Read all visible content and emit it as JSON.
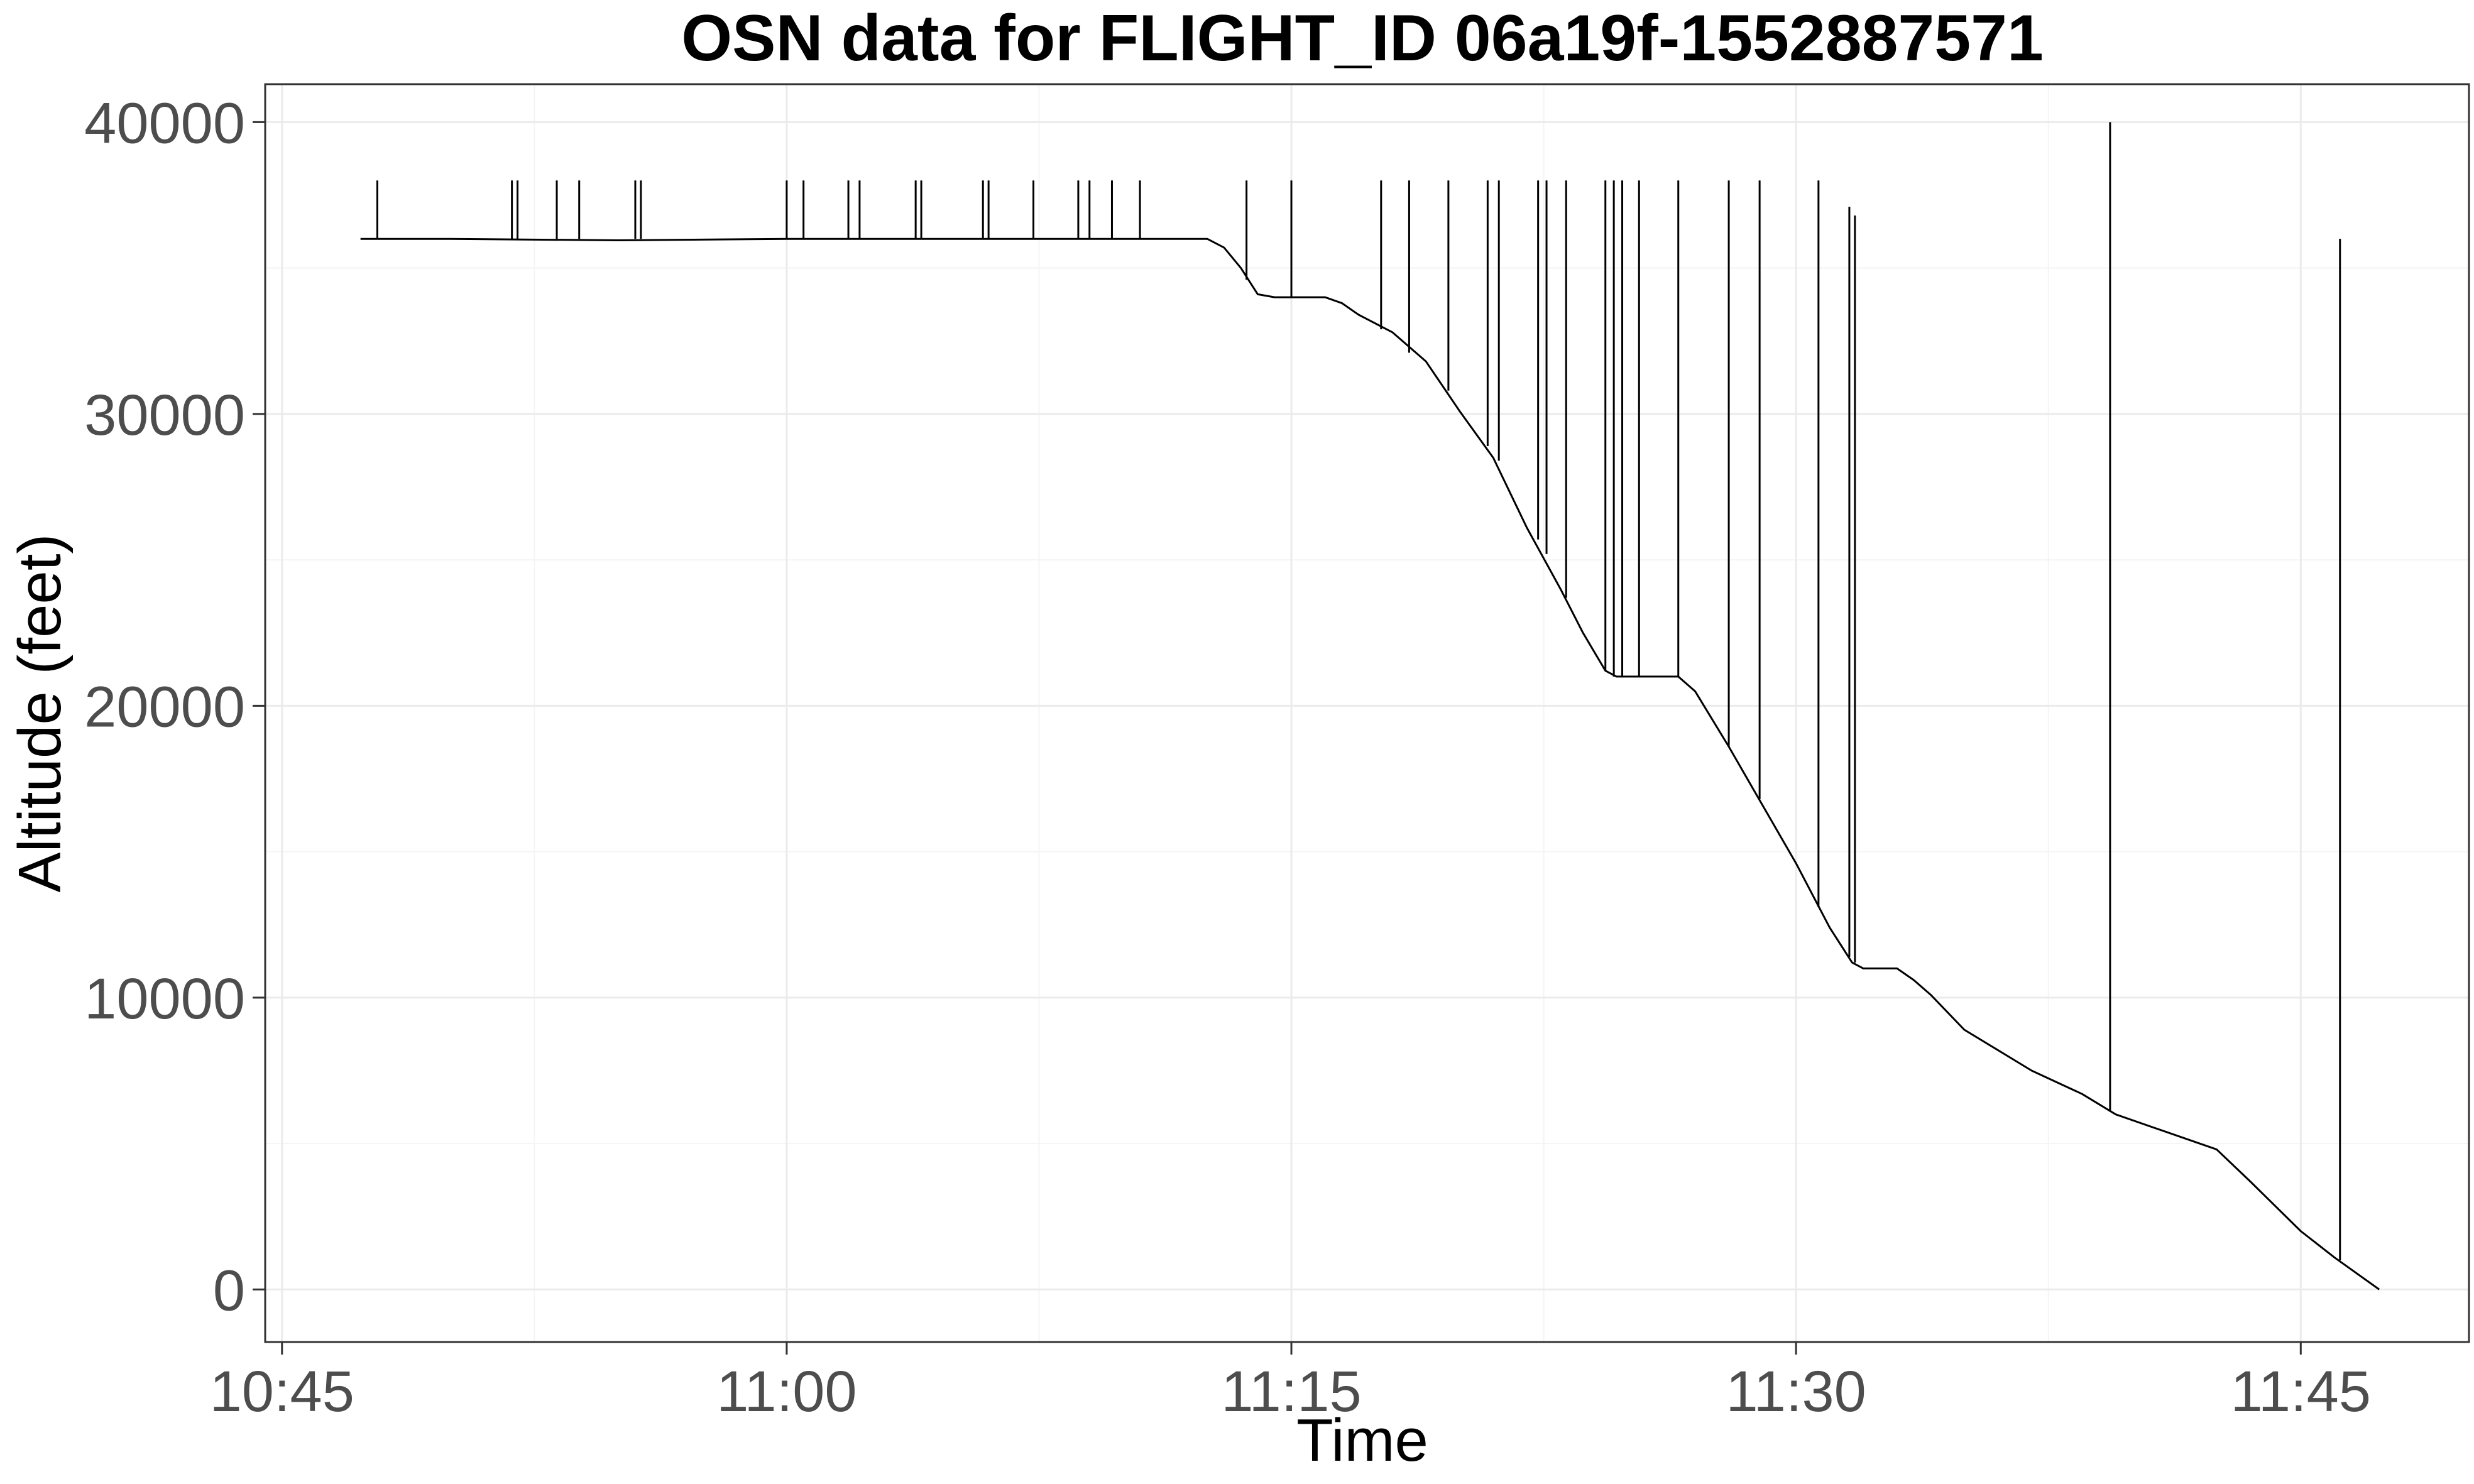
{
  "chart_data": {
    "type": "line",
    "title": "OSN data for FLIGHT_ID 06a19f-1552887571",
    "xlabel": "Time",
    "ylabel": "Altitude (feet)",
    "x_unit": "time of day (HH:MM)",
    "xlim": [
      "10:44:30",
      "11:50:00"
    ],
    "ylim": [
      -1800,
      41300
    ],
    "x_ticks": [
      "10:45",
      "11:00",
      "11:15",
      "11:30",
      "11:45"
    ],
    "y_ticks": [
      0,
      10000,
      20000,
      30000,
      40000
    ],
    "grid": true,
    "legend": "none",
    "series": [
      {
        "points": [
          [
            "10:47:20",
            36000
          ],
          [
            "10:50:00",
            36000
          ],
          [
            "10:55:00",
            35950
          ],
          [
            "11:00:00",
            36000
          ],
          [
            "11:05:00",
            36000
          ],
          [
            "11:10:00",
            36000
          ],
          [
            "11:12:30",
            36000
          ],
          [
            "11:13:00",
            35700
          ],
          [
            "11:13:30",
            35000
          ],
          [
            "11:14:00",
            34100
          ],
          [
            "11:14:30",
            34000
          ],
          [
            "11:16:00",
            34000
          ],
          [
            "11:16:30",
            33800
          ],
          [
            "11:17:00",
            33400
          ],
          [
            "11:18:00",
            32800
          ],
          [
            "11:19:00",
            31800
          ],
          [
            "11:20:00",
            30100
          ],
          [
            "11:21:00",
            28500
          ],
          [
            "11:22:00",
            26100
          ],
          [
            "11:23:00",
            24000
          ],
          [
            "11:23:40",
            22500
          ],
          [
            "11:24:20",
            21200
          ],
          [
            "11:24:40",
            21000
          ],
          [
            "11:26:30",
            21000
          ],
          [
            "11:27:00",
            20500
          ],
          [
            "11:28:00",
            18600
          ],
          [
            "11:29:00",
            16600
          ],
          [
            "11:30:00",
            14600
          ],
          [
            "11:31:00",
            12400
          ],
          [
            "11:31:40",
            11200
          ],
          [
            "11:32:00",
            11000
          ],
          [
            "11:33:00",
            11000
          ],
          [
            "11:33:30",
            10600
          ],
          [
            "11:34:00",
            10100
          ],
          [
            "11:35:00",
            8900
          ],
          [
            "11:37:00",
            7500
          ],
          [
            "11:38:30",
            6700
          ],
          [
            "11:39:30",
            6000
          ],
          [
            "11:41:00",
            5400
          ],
          [
            "11:42:30",
            4800
          ],
          [
            "11:43:30",
            3700
          ],
          [
            "11:45:00",
            2000
          ],
          [
            "11:46:00",
            1100
          ],
          [
            "11:47:20",
            0
          ]
        ]
      }
    ],
    "spikes": [
      [
        "10:47:50",
        36000,
        38000
      ],
      [
        "10:51:50",
        36000,
        38000
      ],
      [
        "10:52:00",
        36000,
        38000
      ],
      [
        "10:53:10",
        36000,
        38000
      ],
      [
        "10:53:50",
        36000,
        38000
      ],
      [
        "10:55:30",
        36000,
        38000
      ],
      [
        "10:55:40",
        36000,
        38000
      ],
      [
        "11:00:00",
        36000,
        38000
      ],
      [
        "11:00:30",
        36000,
        38000
      ],
      [
        "11:01:50",
        36000,
        38000
      ],
      [
        "11:02:10",
        36000,
        38000
      ],
      [
        "11:03:50",
        36000,
        38000
      ],
      [
        "11:04:00",
        36000,
        38000
      ],
      [
        "11:05:50",
        36000,
        38000
      ],
      [
        "11:06:00",
        36000,
        38000
      ],
      [
        "11:07:20",
        36000,
        38000
      ],
      [
        "11:08:40",
        36000,
        38000
      ],
      [
        "11:09:00",
        36000,
        38000
      ],
      [
        "11:09:40",
        36000,
        38000
      ],
      [
        "11:10:30",
        36000,
        38000
      ],
      [
        "11:13:40",
        34600,
        38000
      ],
      [
        "11:15:00",
        34000,
        38000
      ],
      [
        "11:17:40",
        32900,
        38000
      ],
      [
        "11:18:30",
        32100,
        38000
      ],
      [
        "11:19:40",
        30800,
        38000
      ],
      [
        "11:20:50",
        28900,
        38000
      ],
      [
        "11:21:10",
        28400,
        38000
      ],
      [
        "11:22:20",
        25700,
        38000
      ],
      [
        "11:22:35",
        25200,
        38000
      ],
      [
        "11:23:10",
        23700,
        38000
      ],
      [
        "11:24:20",
        21200,
        38000
      ],
      [
        "11:24:35",
        21000,
        38000
      ],
      [
        "11:24:50",
        21000,
        38000
      ],
      [
        "11:25:20",
        21000,
        38000
      ],
      [
        "11:26:30",
        21000,
        38000
      ],
      [
        "11:28:00",
        18600,
        38000
      ],
      [
        "11:28:55",
        16800,
        38000
      ],
      [
        "11:30:40",
        13100,
        38000
      ],
      [
        "11:31:35",
        11400,
        37100
      ],
      [
        "11:31:45",
        11200,
        36800
      ],
      [
        "11:39:20",
        6100,
        40000
      ],
      [
        "11:46:10",
        1000,
        36000
      ]
    ]
  }
}
